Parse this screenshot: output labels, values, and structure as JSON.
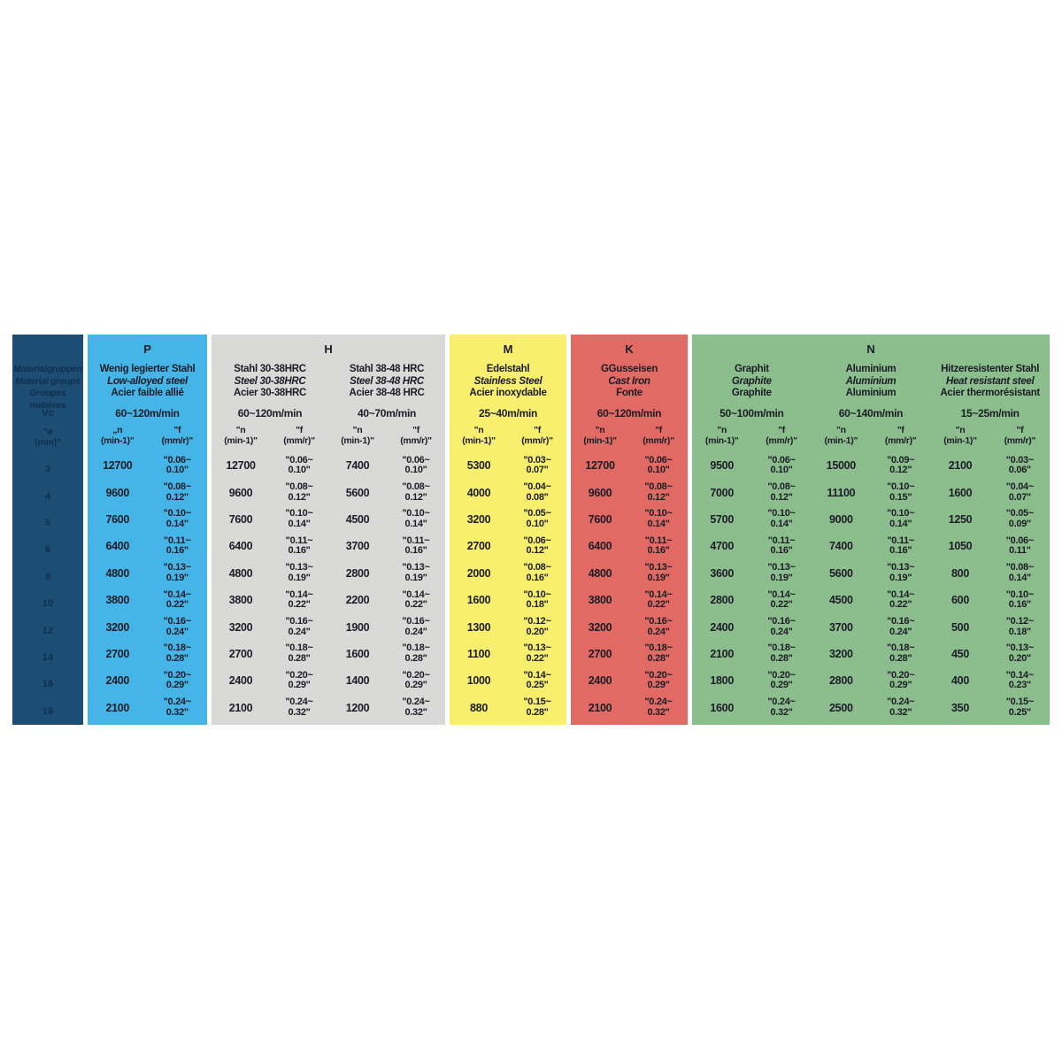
{
  "chart_data": {
    "type": "table",
    "title": "",
    "text_color": "#1C1C26",
    "row_header": {
      "bg_color": "#1E4D73",
      "text_color": "#0E2F4F",
      "title_de": "Materialgruppen",
      "title_en": "Material groups",
      "title_fr": "Groupes matières",
      "vc_label": "Vc",
      "dia_line1": "\"ø",
      "dia_line2": "(mm)\"",
      "diameters": [
        "3",
        "4",
        "5",
        "6",
        "8",
        "10",
        "12",
        "14",
        "16",
        "18"
      ]
    },
    "groups": [
      {
        "letter": "P",
        "color": "#45B5E8",
        "materials": [
          {
            "name_de": "Wenig legierter Stahl",
            "name_en": "Low-alloyed steel",
            "name_fr": "Acier faible allié",
            "vc": "60~120m/min",
            "n_header": [
              "„n",
              "(min-1)\""
            ],
            "f_header": [
              "\"f",
              "(mm/r)\""
            ],
            "n": [
              "12700",
              "9600",
              "7600",
              "6400",
              "4800",
              "3800",
              "3200",
              "2700",
              "2400",
              "2100"
            ],
            "f": [
              "0.06~0.10",
              "0.08~0.12",
              "0.10~0.14",
              "0.11~0.16",
              "0.13~0.19",
              "0.14~0.22",
              "0.16~0.24",
              "0.18~0.28",
              "0.20~0.29",
              "0.24~0.32"
            ]
          }
        ]
      },
      {
        "letter": "H",
        "color": "#D9D9D8",
        "materials": [
          {
            "name_de": "Stahl 30-38HRC",
            "name_en": "Steel 30-38HRC",
            "name_fr": "Acier 30-38HRC",
            "vc": "60~120m/min",
            "n_header": [
              "\"n",
              "(min-1)\""
            ],
            "f_header": [
              "\"f",
              "(mm/r)\""
            ],
            "n": [
              "12700",
              "9600",
              "7600",
              "6400",
              "4800",
              "3800",
              "3200",
              "2700",
              "2400",
              "2100"
            ],
            "f": [
              "0.06~0.10",
              "0.08~0.12",
              "0.10~0.14",
              "0.11~0.16",
              "0.13~0.19",
              "0.14~0.22",
              "0.16~0.24",
              "0.18~0.28",
              "0.20~0.29",
              "0.24~0.32"
            ]
          },
          {
            "name_de": "Stahl 38-48 HRC",
            "name_en": "Steel 38-48 HRC",
            "name_fr": "Acier 38-48 HRC",
            "vc": "40~70m/min",
            "n_header": [
              "\"n",
              "(min-1)\""
            ],
            "f_header": [
              "\"f",
              "(mm/r)\""
            ],
            "n": [
              "7400",
              "5600",
              "4500",
              "3700",
              "2800",
              "2200",
              "1900",
              "1600",
              "1400",
              "1200"
            ],
            "f": [
              "0.06~0.10",
              "0.08~0.12",
              "0.10~0.14",
              "0.11~0.16",
              "0.13~0.19",
              "0.14~0.22",
              "0.16~0.24",
              "0.18~0.28",
              "0.20~0.29",
              "0.24~0.32"
            ]
          }
        ]
      },
      {
        "letter": "M",
        "color": "#F8EF6F",
        "materials": [
          {
            "name_de": "Edelstahl",
            "name_en": "Stainless Steel",
            "name_fr": "Acier inoxydable",
            "vc": "25~40m/min",
            "n_header": [
              "\"n",
              "(min-1)\""
            ],
            "f_header": [
              "\"f",
              "(mm/r)\""
            ],
            "n": [
              "5300",
              "4000",
              "3200",
              "2700",
              "2000",
              "1600",
              "1300",
              "1100",
              "1000",
              "880"
            ],
            "f": [
              "0.03~0.07",
              "0.04~0.08",
              "0.05~0.10",
              "0.06~0.12",
              "0.08~0.16",
              "0.10~0.18",
              "0.12~0.20",
              "0.13~0.22",
              "0.14~0.25",
              "0.15~0.28"
            ]
          }
        ]
      },
      {
        "letter": "K",
        "color": "#E16A64",
        "materials": [
          {
            "name_de": "GGusseisen",
            "name_en": "Cast Iron",
            "name_fr": "Fonte",
            "vc": "60~120m/min",
            "n_header": [
              "\"n",
              "(min-1)\""
            ],
            "f_header": [
              "\"f",
              "(mm/r)\""
            ],
            "n": [
              "12700",
              "9600",
              "7600",
              "6400",
              "4800",
              "3800",
              "3200",
              "2700",
              "2400",
              "2100"
            ],
            "f": [
              "0.06~0.10",
              "0.08~0.12",
              "0.10~0.14",
              "0.11~0.16",
              "0.13~0.19",
              "0.14~0.22",
              "0.16~0.24",
              "0.18~0.28",
              "0.20~0.29",
              "0.24~0.32"
            ]
          }
        ]
      },
      {
        "letter": "N",
        "color": "#8CBE8D",
        "materials": [
          {
            "name_de": "Graphit",
            "name_en": "Graphite",
            "name_fr": "Graphite",
            "vc": "50~100m/min",
            "n_header": [
              "\"n",
              "(min-1)\""
            ],
            "f_header": [
              "\"f",
              "(mm/r)\""
            ],
            "n": [
              "9500",
              "7000",
              "5700",
              "4700",
              "3600",
              "2800",
              "2400",
              "2100",
              "1800",
              "1600"
            ],
            "f": [
              "0.06~0.10",
              "0.08~0.12",
              "0.10~0.14",
              "0.11~0.16",
              "0.13~0.19",
              "0.14~0.22",
              "0.16~0.24",
              "0.18~0.28",
              "0.20~0.29",
              "0.24~0.32"
            ]
          },
          {
            "name_de": "Aluminium",
            "name_en": "Aluminium",
            "name_fr": "Aluminium",
            "vc": "60~140m/min",
            "n_header": [
              "\"n",
              "(min-1)\""
            ],
            "f_header": [
              "\"f",
              "(mm/r)\""
            ],
            "n": [
              "15000",
              "11100",
              "9000",
              "7400",
              "5600",
              "4500",
              "3700",
              "3200",
              "2800",
              "2500"
            ],
            "f": [
              "0.09~0.12",
              "0.10~0.15",
              "0.10~0.14",
              "0.11~0.16",
              "0.13~0.19",
              "0.14~0.22",
              "0.16~0.24",
              "0.18~0.28",
              "0.20~0.29",
              "0.24~0.32"
            ]
          },
          {
            "name_de": "Hitzeresistenter Stahl",
            "name_en": "Heat resistant steel",
            "name_fr": "Acier thermorésistant",
            "vc": "15~25m/min",
            "n_header": [
              "\"n",
              "(min-1)\""
            ],
            "f_header": [
              "\"f",
              "(mm/r)\""
            ],
            "n": [
              "2100",
              "1600",
              "1250",
              "1050",
              "800",
              "600",
              "500",
              "450",
              "400",
              "350"
            ],
            "f": [
              "0.03~0.06",
              "0.04~0.07",
              "0.05~0.09",
              "0.06~0.11",
              "0.08~0.14",
              "0.10~0.16",
              "0.12~0.18",
              "0.13~0.20",
              "0.14~0.23",
              "0.15~0.25"
            ]
          }
        ]
      }
    ]
  }
}
